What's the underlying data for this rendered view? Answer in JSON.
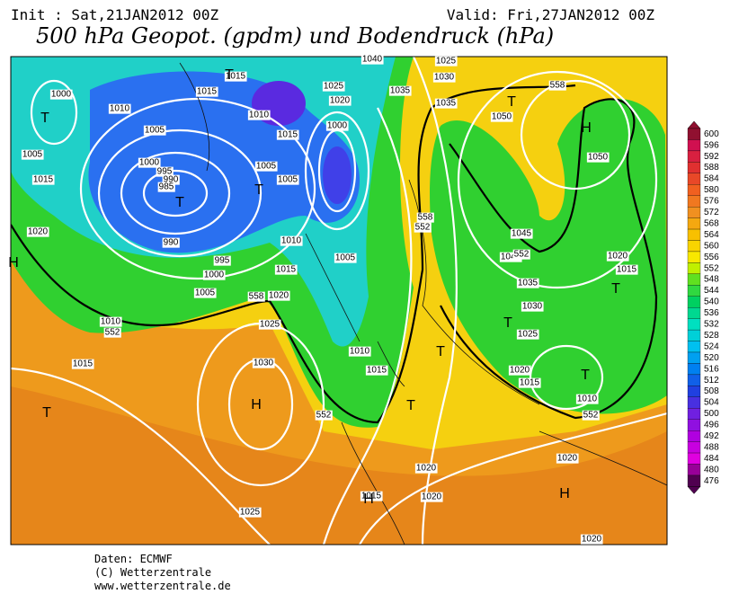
{
  "header": {
    "init": "Init : Sat,21JAN2012 00Z",
    "valid": "Valid: Fri,27JAN2012 00Z",
    "title": "500 hPa Geopot. (gpdm) und Bodendruck (hPa)"
  },
  "colorbar": {
    "levels": [
      600,
      596,
      592,
      588,
      584,
      580,
      576,
      572,
      568,
      564,
      560,
      556,
      552,
      548,
      544,
      540,
      536,
      532,
      528,
      524,
      520,
      516,
      512,
      508,
      504,
      500,
      496,
      492,
      488,
      484,
      480,
      476
    ]
  },
  "map_labels": [
    "1000",
    "T",
    "1005",
    "1015",
    "1020",
    "H",
    "1010",
    "1005",
    "1000",
    "995",
    "990",
    "985",
    "T",
    "990",
    "995",
    "1000",
    "1005",
    "1015",
    "1015",
    "T",
    "1010",
    "1015",
    "1005",
    "1005",
    "T",
    "1010",
    "1015",
    "1020",
    "1025",
    "1020",
    "1000",
    "1005",
    "1010",
    "1015",
    "1035",
    "1040",
    "1025",
    "1030",
    "1035",
    "T",
    "1050",
    "H",
    "1050",
    "1045",
    "1040",
    "1035",
    "1030",
    "T",
    "1025",
    "1020",
    "1015",
    "T",
    "1020",
    "1015",
    "T",
    "1010",
    "T",
    "T",
    "1010",
    "1015",
    "T",
    "1025",
    "1030",
    "H",
    "1020",
    "1015",
    "H",
    "1020",
    "1020",
    "H",
    "1025",
    "1020",
    "552",
    "558",
    "552",
    "558",
    "552",
    "552",
    "552",
    "558"
  ],
  "footer": [
    "Daten: ECMWF",
    "(C) Wetterzentrale",
    "www.wetterzentrale.de"
  ]
}
